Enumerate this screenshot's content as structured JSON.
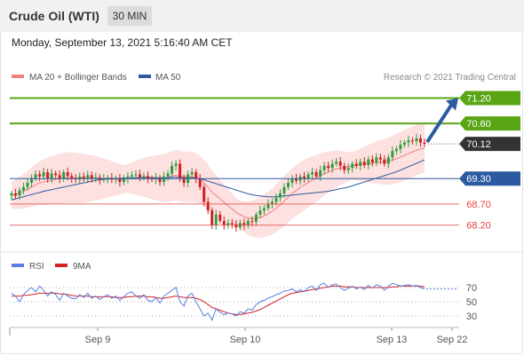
{
  "header": {
    "title": "Crude Oil (WTI)",
    "interval": "30 MIN"
  },
  "datetime": "Monday, September 13, 2021 5:16:40 AM CET",
  "legend": {
    "ma20": "MA 20 + Bollinger Bands",
    "ma50": "MA 50",
    "credit": "Research © 2021 Trading Central"
  },
  "rsi_legend": {
    "rsi": "RSI",
    "ma9": "9MA"
  },
  "colors": {
    "support_resistance_green": "#5aa514",
    "ma50_blue": "#2c5aa0",
    "bollinger_fill": "#fde0e0",
    "ma20_red": "#f08080",
    "level_red": "#e84040",
    "rsi_blue": "#5b7fe0",
    "rsi_ma_red": "#d42020",
    "candle_green": "#2e9e3e",
    "candle_red": "#d42020",
    "arrow_blue": "#2c5aa0"
  },
  "chart_data": [
    {
      "type": "line",
      "title": "",
      "ylim": [
        67.65,
        71.42
      ],
      "x_categories": [
        "Sep 9",
        "Sep 10",
        "Sep 13",
        "Sep 22"
      ],
      "levels": [
        {
          "value": 71.2,
          "label": "71.20",
          "kind": "resistance",
          "color": "#5aa514"
        },
        {
          "value": 70.6,
          "label": "70.60",
          "kind": "resistance",
          "color": "#5aa514"
        },
        {
          "value": 70.12,
          "label": "70.12",
          "kind": "last",
          "color": "#333333"
        },
        {
          "value": 69.3,
          "label": "69.30",
          "kind": "pivot",
          "color": "#2c5aa0"
        },
        {
          "value": 68.7,
          "label": "68.70",
          "kind": "support",
          "color": "#e84040"
        },
        {
          "value": 68.2,
          "label": "68.20",
          "kind": "support",
          "color": "#e84040"
        }
      ],
      "close_series": [
        68.95,
        68.9,
        69.02,
        69.1,
        69.2,
        69.3,
        69.4,
        69.35,
        69.45,
        69.3,
        69.42,
        69.38,
        69.3,
        69.45,
        69.36,
        69.3,
        69.28,
        69.35,
        69.3,
        69.38,
        69.3,
        69.33,
        69.27,
        69.3,
        69.32,
        69.28,
        69.3,
        69.22,
        69.3,
        69.35,
        69.38,
        69.4,
        69.33,
        69.36,
        69.3,
        69.28,
        69.32,
        69.22,
        69.35,
        69.42,
        69.6,
        69.65,
        69.3,
        69.2,
        69.4,
        69.45,
        69.3,
        69.1,
        68.75,
        68.55,
        68.2,
        68.45,
        68.3,
        68.2,
        68.25,
        68.22,
        68.15,
        68.25,
        68.2,
        68.3,
        68.28,
        68.45,
        68.55,
        68.6,
        68.7,
        68.75,
        68.85,
        68.95,
        69.1,
        69.2,
        69.3,
        69.25,
        69.35,
        69.3,
        69.4,
        69.45,
        69.35,
        69.5,
        69.6,
        69.55,
        69.65,
        69.7,
        69.6,
        69.5,
        69.55,
        69.65,
        69.6,
        69.7,
        69.62,
        69.75,
        69.68,
        69.8,
        69.75,
        69.65,
        69.8,
        69.95,
        70.0,
        70.1,
        70.15,
        70.2,
        70.18,
        70.25,
        70.15,
        70.12
      ],
      "ma20": [
        68.9,
        68.93,
        68.97,
        69.0,
        69.05,
        69.1,
        69.15,
        69.2,
        69.22,
        69.24,
        69.26,
        69.28,
        69.3,
        69.31,
        69.32,
        69.32,
        69.31,
        69.31,
        69.3,
        69.31,
        69.31,
        69.31,
        69.3,
        69.3,
        69.3,
        69.29,
        69.29,
        69.29,
        69.29,
        69.3,
        69.31,
        69.32,
        69.32,
        69.33,
        69.33,
        69.32,
        69.32,
        69.31,
        69.31,
        69.33,
        69.36,
        69.38,
        69.36,
        69.34,
        69.34,
        69.34,
        69.32,
        69.28,
        69.2,
        69.1,
        68.98,
        68.9,
        68.82,
        68.74,
        68.66,
        68.58,
        68.5,
        68.45,
        68.4,
        68.37,
        68.35,
        68.36,
        68.38,
        68.42,
        68.47,
        68.53,
        68.6,
        68.68,
        68.77,
        68.86,
        68.95,
        69.02,
        69.09,
        69.15,
        69.2,
        69.26,
        69.3,
        69.36,
        69.41,
        69.45,
        69.49,
        69.53,
        69.55,
        69.56,
        69.58,
        69.6,
        69.61,
        69.63,
        69.63,
        69.65,
        69.66,
        69.68,
        69.69,
        69.69,
        69.71,
        69.74,
        69.77,
        69.81,
        69.85,
        69.89,
        69.93,
        69.97,
        70.0,
        70.02
      ],
      "ma50": [
        68.8,
        68.82,
        68.85,
        68.87,
        68.9,
        68.92,
        68.95,
        68.97,
        69.0,
        69.02,
        69.04,
        69.06,
        69.08,
        69.1,
        69.12,
        69.14,
        69.16,
        69.18,
        69.2,
        69.22,
        69.24,
        69.26,
        69.27,
        69.28,
        69.29,
        69.3,
        69.3,
        69.31,
        69.31,
        69.31,
        69.32,
        69.32,
        69.32,
        69.32,
        69.32,
        69.32,
        69.32,
        69.32,
        69.32,
        69.32,
        69.33,
        69.33,
        69.33,
        69.32,
        69.32,
        69.32,
        69.31,
        69.3,
        69.27,
        69.24,
        69.21,
        69.18,
        69.15,
        69.12,
        69.09,
        69.06,
        69.03,
        69.0,
        68.97,
        68.94,
        68.92,
        68.9,
        68.89,
        68.88,
        68.87,
        68.87,
        68.87,
        68.88,
        68.89,
        68.9,
        68.91,
        68.92,
        68.93,
        68.94,
        68.95,
        68.96,
        68.97,
        68.98,
        68.99,
        69.0,
        69.02,
        69.04,
        69.06,
        69.08,
        69.1,
        69.13,
        69.16,
        69.19,
        69.22,
        69.25,
        69.28,
        69.31,
        69.34,
        69.37,
        69.4,
        69.43,
        69.46,
        69.5,
        69.54,
        69.58,
        69.62,
        69.66,
        69.7,
        69.74
      ]
    },
    {
      "type": "line",
      "title": "",
      "ylim": [
        15,
        85
      ],
      "ticks": [
        70,
        50,
        30
      ],
      "series": [
        {
          "name": "RSI",
          "values": [
            62,
            58,
            50,
            60,
            66,
            70,
            64,
            72,
            66,
            58,
            64,
            60,
            52,
            62,
            58,
            55,
            54,
            60,
            56,
            62,
            55,
            58,
            53,
            57,
            60,
            55,
            58,
            52,
            57,
            62,
            64,
            58,
            55,
            60,
            52,
            50,
            56,
            48,
            58,
            62,
            66,
            70,
            50,
            44,
            58,
            62,
            50,
            40,
            30,
            34,
            24,
            40,
            35,
            32,
            34,
            33,
            30,
            36,
            34,
            40,
            38,
            46,
            50,
            52,
            55,
            57,
            60,
            62,
            65,
            66,
            68,
            64,
            67,
            64,
            70,
            72,
            66,
            74,
            76,
            70,
            74,
            75,
            70,
            66,
            69,
            72,
            68,
            71,
            67,
            73,
            69,
            74,
            72,
            66,
            72,
            76,
            74,
            72,
            73,
            74,
            72,
            73,
            70,
            68
          ]
        },
        {
          "name": "9MA",
          "values": [
            58,
            58,
            58,
            59,
            59,
            60,
            61,
            62,
            62,
            62,
            62,
            62,
            61,
            61,
            60,
            59,
            58,
            58,
            58,
            58,
            57,
            57,
            57,
            57,
            57,
            57,
            56,
            56,
            56,
            57,
            57,
            58,
            58,
            58,
            57,
            57,
            56,
            55,
            55,
            56,
            57,
            58,
            57,
            56,
            56,
            56,
            55,
            53,
            50,
            46,
            42,
            40,
            38,
            36,
            34,
            33,
            32,
            32,
            33,
            34,
            35,
            37,
            39,
            42,
            45,
            48,
            51,
            54,
            57,
            60,
            62,
            63,
            64,
            65,
            66,
            67,
            68,
            69,
            70,
            71,
            72,
            72,
            72,
            71,
            71,
            71,
            70,
            70,
            70,
            70,
            70,
            70,
            70,
            70,
            70,
            71,
            71,
            72,
            72,
            72,
            72,
            72,
            72,
            71
          ]
        }
      ]
    }
  ]
}
